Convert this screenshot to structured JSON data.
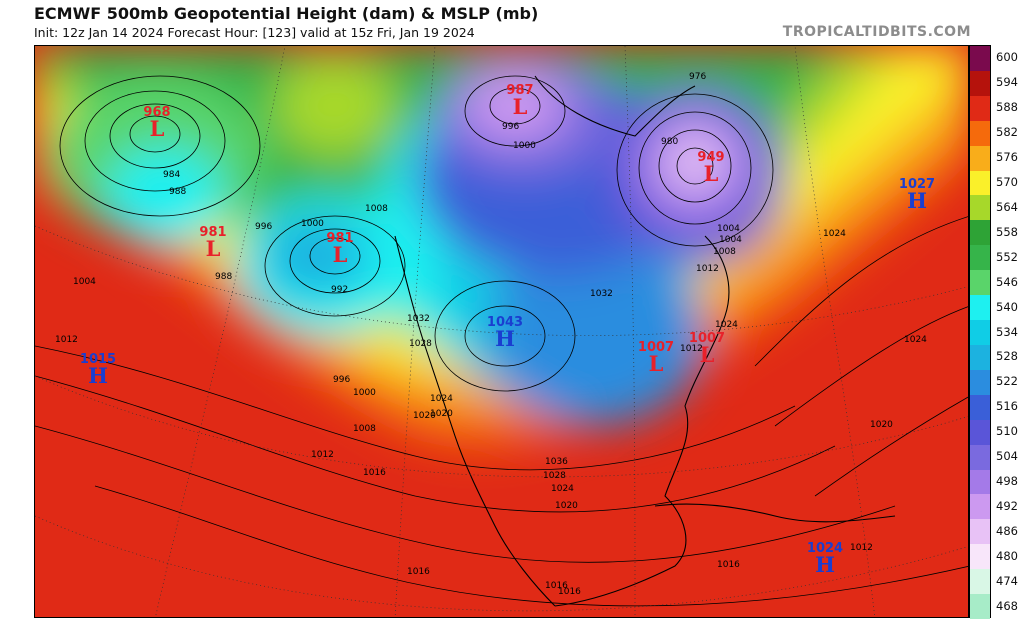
{
  "header": {
    "title": "ECMWF 500mb Geopotential Height (dam) & MSLP (mb)",
    "subtitle": "Init: 12z Jan 14 2024   Forecast Hour: [123]   valid at 15z Fri, Jan 19 2024",
    "credit": "TROPICALTIDBITS.COM"
  },
  "colorbar": {
    "levels": [
      {
        "label": "600",
        "color": "#7a0a4d"
      },
      {
        "label": "594",
        "color": "#b5120c"
      },
      {
        "label": "588",
        "color": "#e02a16"
      },
      {
        "label": "582",
        "color": "#f56a0c"
      },
      {
        "label": "576",
        "color": "#f9ad1a"
      },
      {
        "label": "570",
        "color": "#faf02a"
      },
      {
        "label": "564",
        "color": "#a7d82a"
      },
      {
        "label": "558",
        "color": "#2ea336"
      },
      {
        "label": "552",
        "color": "#36b44a"
      },
      {
        "label": "546",
        "color": "#5ad46a"
      },
      {
        "label": "540",
        "color": "#1ef0f0"
      },
      {
        "label": "534",
        "color": "#10cde6"
      },
      {
        "label": "528",
        "color": "#1cb2e0"
      },
      {
        "label": "522",
        "color": "#2b8ddf"
      },
      {
        "label": "516",
        "color": "#3a5fd8"
      },
      {
        "label": "510",
        "color": "#5a55d8"
      },
      {
        "label": "504",
        "color": "#7a6adf"
      },
      {
        "label": "498",
        "color": "#a47ae8"
      },
      {
        "label": "492",
        "color": "#cc99f0"
      },
      {
        "label": "486",
        "color": "#e8c2f6"
      },
      {
        "label": "480",
        "color": "#f8e6fa"
      },
      {
        "label": "474",
        "color": "#d9f7e6"
      },
      {
        "label": "468",
        "color": "#a7ecc8"
      }
    ]
  },
  "pressure_centers": [
    {
      "type": "L",
      "value": "968"
    },
    {
      "type": "L",
      "value": "981"
    },
    {
      "type": "L",
      "value": "981"
    },
    {
      "type": "L",
      "value": "987"
    },
    {
      "type": "L",
      "value": "949"
    },
    {
      "type": "L",
      "value": "1007"
    },
    {
      "type": "L",
      "value": "1007"
    },
    {
      "type": "H",
      "value": "1027"
    },
    {
      "type": "H",
      "value": "1015"
    },
    {
      "type": "H",
      "value": "1043"
    },
    {
      "type": "H",
      "value": "1024"
    }
  ],
  "isobar_labels": [
    "1012",
    "1004",
    "984",
    "988",
    "988",
    "996",
    "1000",
    "992",
    "996",
    "1000",
    "1008",
    "1012",
    "1016",
    "1016",
    "1016",
    "1020",
    "1024",
    "1028",
    "1032",
    "1036",
    "1028",
    "1024",
    "1020",
    "1016",
    "1024",
    "1012",
    "1024",
    "1032",
    "1020",
    "1008",
    "1000",
    "976",
    "1004",
    "1008",
    "1012",
    "980",
    "996",
    "1024",
    "1020",
    "1016",
    "1012",
    "1004"
  ],
  "colors": {
    "low": "#e8212a",
    "high": "#1a3ed0",
    "contour": "#000000"
  }
}
